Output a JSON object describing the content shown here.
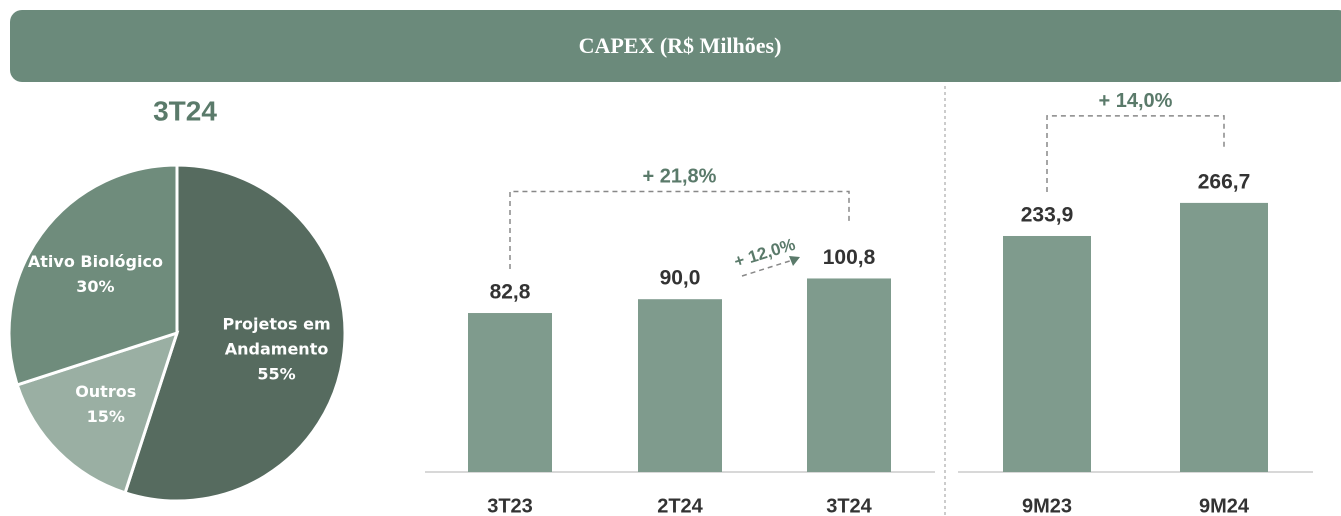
{
  "header": {
    "title": "CAPEX (R$ Milhões)"
  },
  "chart_data": [
    {
      "type": "pie",
      "title": "3T24",
      "categories": [
        "Projetos em Andamento",
        "Outros",
        "Ativo Biológico"
      ],
      "values": [
        55,
        15,
        30
      ],
      "value_labels": [
        "55%",
        "15%",
        "30%"
      ],
      "colors": [
        "#566b5f",
        "#9aafa3",
        "#6f8c7c"
      ]
    },
    {
      "type": "bar",
      "categories": [
        "3T23",
        "2T24",
        "3T24"
      ],
      "values": [
        82.8,
        90.0,
        100.8
      ],
      "value_labels": [
        "82,8",
        "90,0",
        "100,8"
      ],
      "color": "#7f9b8d",
      "ylim": [
        0,
        120
      ],
      "annotations": [
        "+ 21,8%",
        "+ 12,0%"
      ]
    },
    {
      "type": "bar",
      "categories": [
        "9M23",
        "9M24"
      ],
      "values": [
        233.9,
        266.7
      ],
      "value_labels": [
        "233,9",
        "266,7"
      ],
      "color": "#7f9b8d",
      "ylim": [
        0,
        300
      ],
      "annotations": [
        "+ 14,0%"
      ]
    }
  ]
}
